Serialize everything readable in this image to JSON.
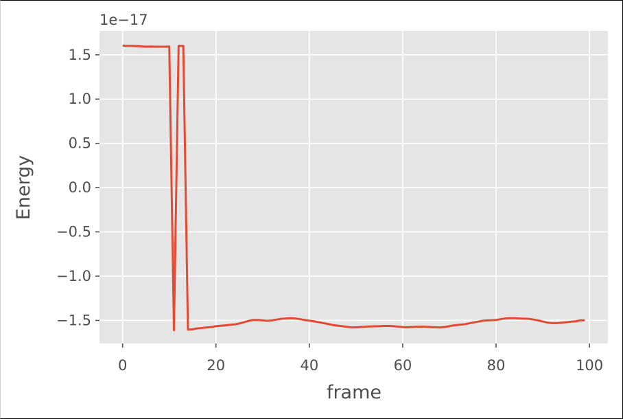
{
  "chart_data": {
    "type": "line",
    "title": "",
    "xlabel": "frame",
    "ylabel": "Energy",
    "y_offset_label": "1e−17",
    "xlim": [
      -4.95,
      103.95
    ],
    "ylim": [
      -1.76,
      1.77
    ],
    "grid": true,
    "legend": "none",
    "colors": {
      "background": "#e5e5e5",
      "grid": "#ffffff",
      "line": "#e24a33",
      "tick": "#555555"
    },
    "x_ticks": [
      0,
      20,
      40,
      60,
      80,
      100
    ],
    "x_tick_labels": [
      "0",
      "20",
      "40",
      "60",
      "80",
      "100"
    ],
    "y_ticks": [
      1.5,
      1.0,
      0.5,
      0.0,
      -0.5,
      -1.0,
      -1.5
    ],
    "y_tick_labels": [
      "1.5",
      "1.0",
      "0.5",
      "0.0",
      "−0.5",
      "−1.0",
      "−1.5"
    ],
    "series": [
      {
        "x": [
          0,
          1,
          2,
          3,
          4,
          5,
          6,
          7,
          8,
          9,
          10,
          11,
          12,
          13,
          14,
          15,
          16,
          17,
          18,
          19,
          20,
          21,
          22,
          23,
          24,
          25,
          26,
          27,
          28,
          29,
          30,
          31,
          32,
          33,
          34,
          35,
          36,
          37,
          38,
          39,
          40,
          41,
          42,
          43,
          44,
          45,
          46,
          47,
          48,
          49,
          50,
          51,
          52,
          53,
          54,
          55,
          56,
          57,
          58,
          59,
          60,
          61,
          62,
          63,
          64,
          65,
          66,
          67,
          68,
          69,
          70,
          71,
          72,
          73,
          74,
          75,
          76,
          77,
          78,
          79,
          80,
          81,
          82,
          83,
          84,
          85,
          86,
          87,
          88,
          89,
          90,
          91,
          92,
          93,
          94,
          95,
          96,
          97,
          98,
          99
        ],
        "y": [
          1.605,
          1.6,
          1.6,
          1.598,
          1.595,
          1.592,
          1.593,
          1.592,
          1.592,
          1.592,
          1.593,
          -1.61,
          1.6,
          1.6,
          -1.605,
          -1.6,
          -1.59,
          -1.585,
          -1.58,
          -1.575,
          -1.565,
          -1.56,
          -1.555,
          -1.55,
          -1.545,
          -1.535,
          -1.52,
          -1.505,
          -1.495,
          -1.495,
          -1.5,
          -1.505,
          -1.5,
          -1.49,
          -1.482,
          -1.478,
          -1.475,
          -1.478,
          -1.485,
          -1.495,
          -1.503,
          -1.51,
          -1.52,
          -1.53,
          -1.54,
          -1.552,
          -1.558,
          -1.565,
          -1.572,
          -1.58,
          -1.578,
          -1.575,
          -1.57,
          -1.568,
          -1.566,
          -1.565,
          -1.562,
          -1.562,
          -1.565,
          -1.57,
          -1.575,
          -1.578,
          -1.575,
          -1.572,
          -1.57,
          -1.572,
          -1.575,
          -1.578,
          -1.58,
          -1.575,
          -1.565,
          -1.555,
          -1.55,
          -1.545,
          -1.535,
          -1.525,
          -1.515,
          -1.505,
          -1.5,
          -1.498,
          -1.495,
          -1.485,
          -1.478,
          -1.475,
          -1.475,
          -1.478,
          -1.48,
          -1.482,
          -1.49,
          -1.5,
          -1.512,
          -1.525,
          -1.53,
          -1.53,
          -1.525,
          -1.52,
          -1.515,
          -1.51,
          -1.5,
          -1.498
        ]
      }
    ]
  }
}
